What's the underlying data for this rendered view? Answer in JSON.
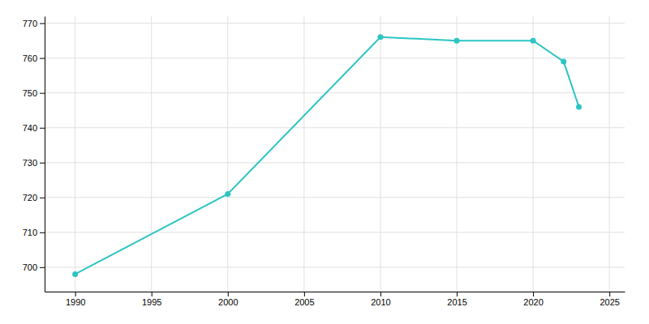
{
  "chart_data": {
    "type": "line",
    "x": [
      1990,
      2000,
      2010,
      2015,
      2020,
      2022,
      2023
    ],
    "values": [
      698,
      721,
      766,
      765,
      765,
      759,
      746
    ],
    "color": "#2dc4c4",
    "marker": "circle",
    "line_style": "solid",
    "xlim": [
      1988,
      2026
    ],
    "ylim": [
      693,
      772
    ],
    "xticks": [
      1990,
      1995,
      2000,
      2005,
      2010,
      2015,
      2020,
      2025
    ],
    "yticks": [
      700,
      710,
      720,
      730,
      740,
      750,
      760,
      770
    ],
    "grid": true
  }
}
